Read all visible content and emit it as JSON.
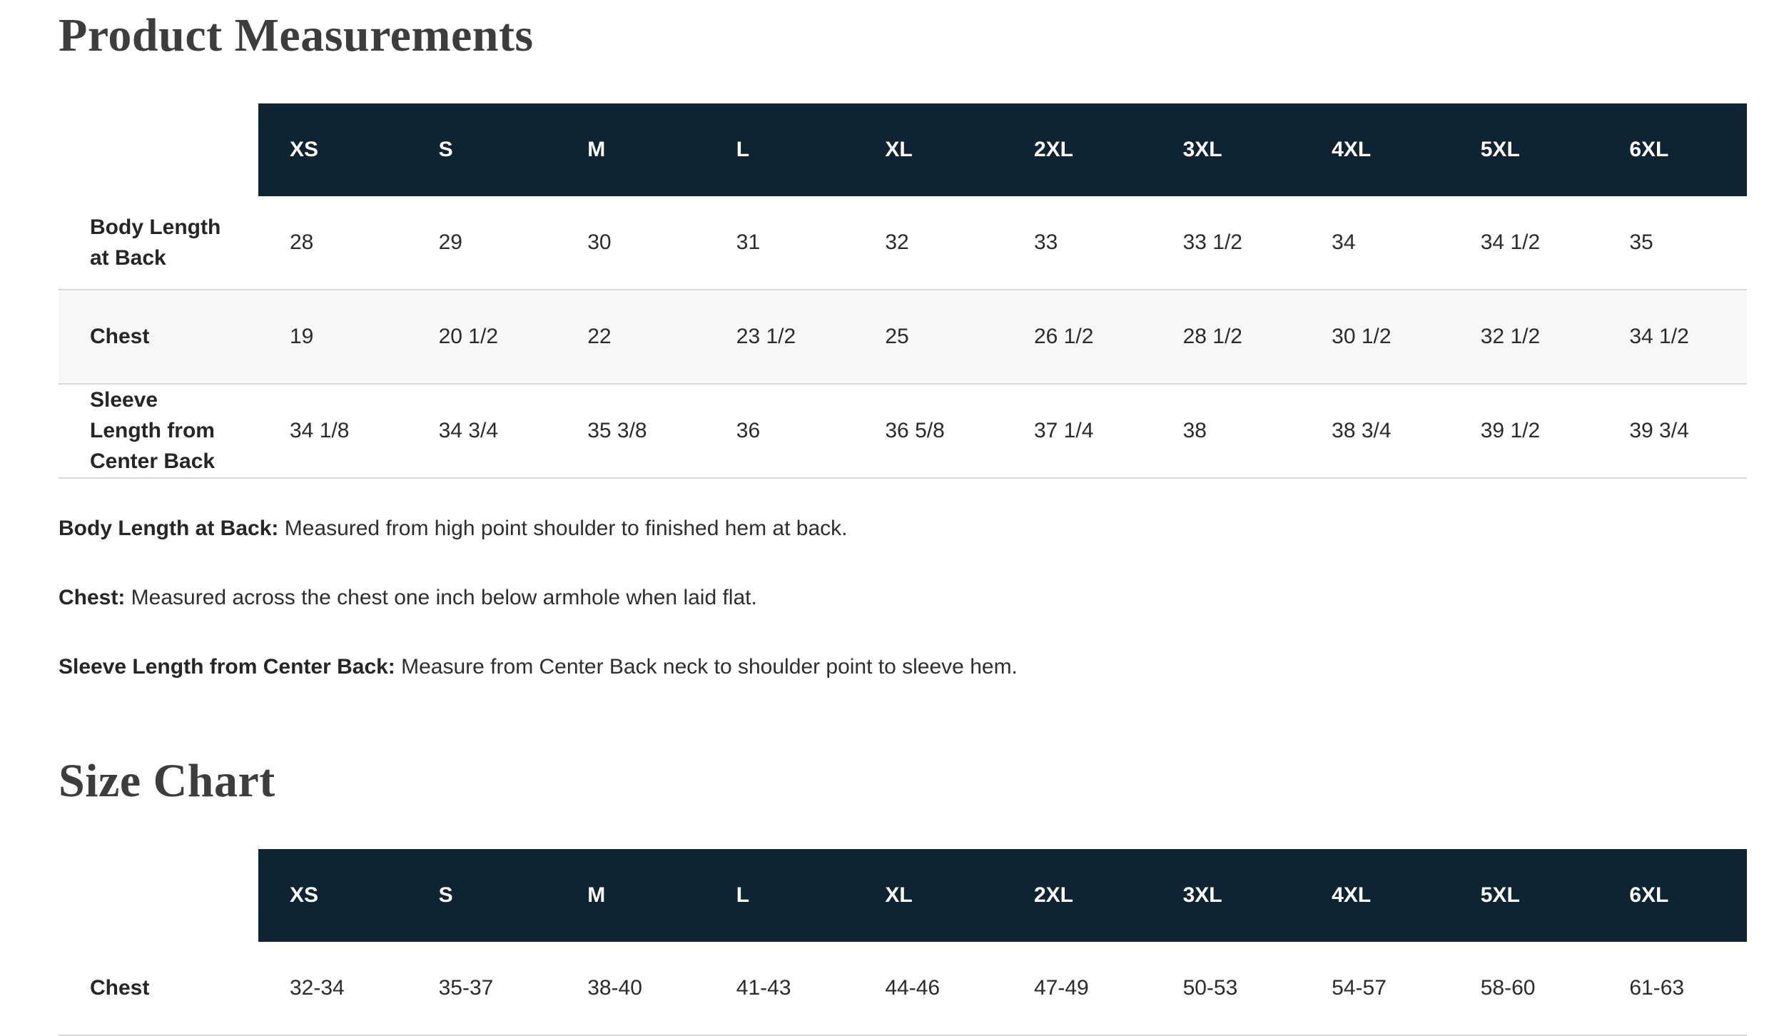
{
  "colors": {
    "header_bg": "#0e2433",
    "header_text": "#ffffff",
    "row_stripe": "#f8f8f8",
    "row_border": "#d8d8d8",
    "title_text": "#3d3d3d",
    "body_text": "#2e2e2e"
  },
  "product_measurements": {
    "title": "Product Measurements",
    "table": {
      "size_headers": [
        "XS",
        "S",
        "M",
        "L",
        "XL",
        "2XL",
        "3XL",
        "4XL",
        "5XL",
        "6XL"
      ],
      "rows": [
        {
          "label": "Body Length at Back",
          "values": [
            "28",
            "29",
            "30",
            "31",
            "32",
            "33",
            "33 1/2",
            "34",
            "34 1/2",
            "35"
          ]
        },
        {
          "label": "Chest",
          "values": [
            "19",
            "20 1/2",
            "22",
            "23 1/2",
            "25",
            "26 1/2",
            "28 1/2",
            "30 1/2",
            "32 1/2",
            "34 1/2"
          ]
        },
        {
          "label": "Sleeve Length from Center Back",
          "values": [
            "34 1/8",
            "34 3/4",
            "35 3/8",
            "36",
            "36 5/8",
            "37 1/4",
            "38",
            "38 3/4",
            "39 1/2",
            "39 3/4"
          ]
        }
      ]
    },
    "notes": [
      {
        "term": "Body Length at Back:",
        "definition": "Measured from high point shoulder to finished hem at back."
      },
      {
        "term": "Chest:",
        "definition": "Measured across the chest one inch below armhole when laid flat."
      },
      {
        "term": "Sleeve Length from Center Back:",
        "definition": "Measure from Center Back neck to shoulder point to sleeve hem."
      }
    ]
  },
  "size_chart": {
    "title": "Size Chart",
    "table": {
      "size_headers": [
        "XS",
        "S",
        "M",
        "L",
        "XL",
        "2XL",
        "3XL",
        "4XL",
        "5XL",
        "6XL"
      ],
      "rows": [
        {
          "label": "Chest",
          "values": [
            "32-34",
            "35-37",
            "38-40",
            "41-43",
            "44-46",
            "47-49",
            "50-53",
            "54-57",
            "58-60",
            "61-63"
          ]
        }
      ]
    }
  }
}
